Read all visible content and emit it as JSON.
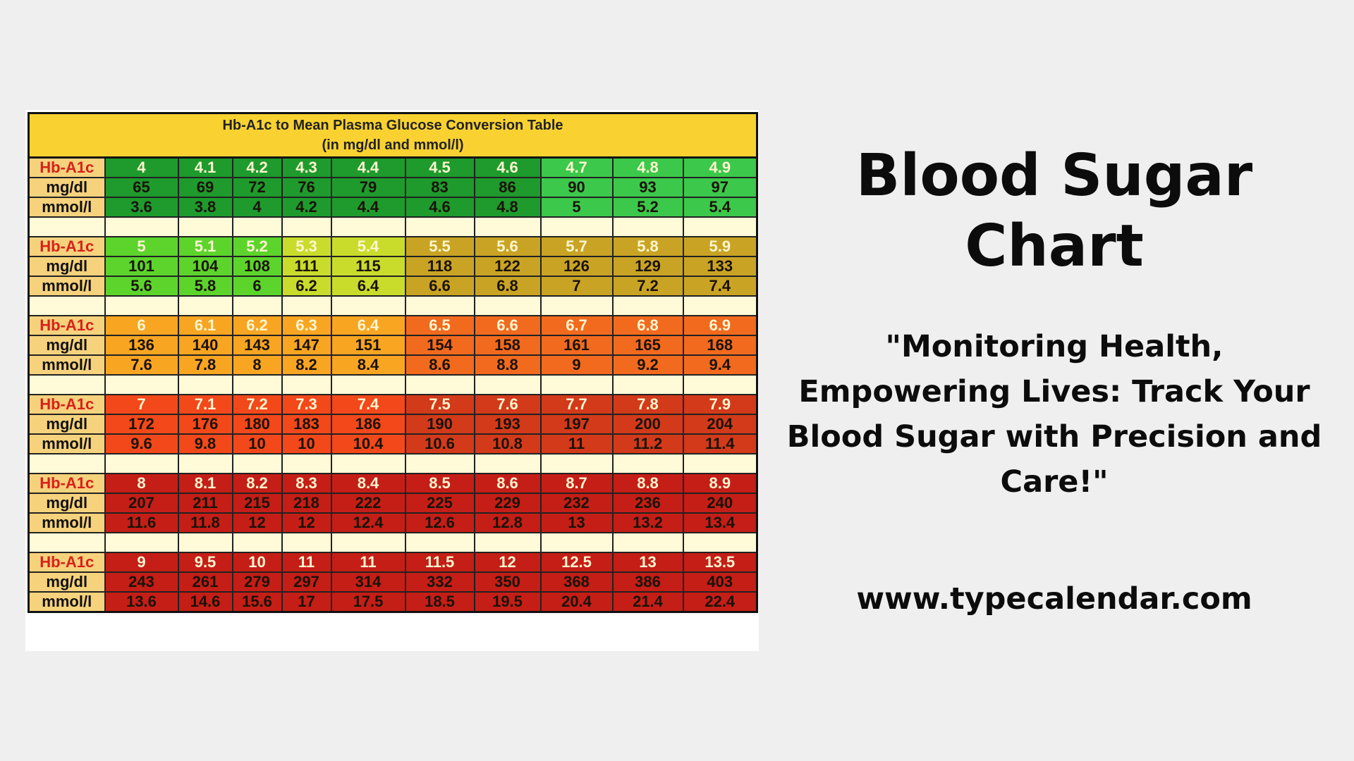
{
  "table": {
    "title_line1": "Hb-A1c to Mean Plasma Glucose Conversion Table",
    "title_line2": "(in mg/dl and mmol/l)",
    "row_labels": [
      "Hb-A1c",
      "mg/dl",
      "mmol/l"
    ],
    "groups": [
      {
        "hba1c": [
          "4",
          "4.1",
          "4.2",
          "4.3",
          "4.4",
          "4.5",
          "4.6",
          "4.7",
          "4.8",
          "4.9"
        ],
        "mgdl": [
          "65",
          "69",
          "72",
          "76",
          "79",
          "83",
          "86",
          "90",
          "93",
          "97"
        ],
        "mmol": [
          "3.6",
          "3.8",
          "4",
          "4.2",
          "4.4",
          "4.6",
          "4.8",
          "5",
          "5.2",
          "5.4"
        ],
        "colors": [
          "#1e9b2c",
          "#1e9b2c",
          "#1e9b2c",
          "#1e9b2c",
          "#1e9b2c",
          "#1e9b2c",
          "#1e9b2c",
          "#3cc84a",
          "#3cc84a",
          "#3cc84a"
        ]
      },
      {
        "hba1c": [
          "5",
          "5.1",
          "5.2",
          "5.3",
          "5.4",
          "5.5",
          "5.6",
          "5.7",
          "5.8",
          "5.9"
        ],
        "mgdl": [
          "101",
          "104",
          "108",
          "111",
          "115",
          "118",
          "122",
          "126",
          "129",
          "133"
        ],
        "mmol": [
          "5.6",
          "5.8",
          "6",
          "6.2",
          "6.4",
          "6.6",
          "6.8",
          "7",
          "7.2",
          "7.4"
        ],
        "colors": [
          "#5cd42c",
          "#5cd42c",
          "#5cd42c",
          "#c9dc2c",
          "#c9dc2c",
          "#c9a424",
          "#c9a424",
          "#c9a424",
          "#c9a424",
          "#c9a424"
        ]
      },
      {
        "hba1c": [
          "6",
          "6.1",
          "6.2",
          "6.3",
          "6.4",
          "6.5",
          "6.6",
          "6.7",
          "6.8",
          "6.9"
        ],
        "mgdl": [
          "136",
          "140",
          "143",
          "147",
          "151",
          "154",
          "158",
          "161",
          "165",
          "168"
        ],
        "mmol": [
          "7.6",
          "7.8",
          "8",
          "8.2",
          "8.4",
          "8.6",
          "8.8",
          "9",
          "9.2",
          "9.4"
        ],
        "colors": [
          "#f8a522",
          "#f8a522",
          "#f8a522",
          "#f8a522",
          "#f8a522",
          "#f26a1e",
          "#f26a1e",
          "#f26a1e",
          "#f26a1e",
          "#f26a1e"
        ]
      },
      {
        "hba1c": [
          "7",
          "7.1",
          "7.2",
          "7.3",
          "7.4",
          "7.5",
          "7.6",
          "7.7",
          "7.8",
          "7.9"
        ],
        "mgdl": [
          "172",
          "176",
          "180",
          "183",
          "186",
          "190",
          "193",
          "197",
          "200",
          "204"
        ],
        "mmol": [
          "9.6",
          "9.8",
          "10",
          "10",
          "10.4",
          "10.6",
          "10.8",
          "11",
          "11.2",
          "11.4"
        ],
        "colors": [
          "#f2481a",
          "#f2481a",
          "#f2481a",
          "#f2481a",
          "#f2481a",
          "#d23a1a",
          "#d23a1a",
          "#d23a1a",
          "#d23a1a",
          "#d23a1a"
        ]
      },
      {
        "hba1c": [
          "8",
          "8.1",
          "8.2",
          "8.3",
          "8.4",
          "8.5",
          "8.6",
          "8.7",
          "8.8",
          "8.9"
        ],
        "mgdl": [
          "207",
          "211",
          "215",
          "218",
          "222",
          "225",
          "229",
          "232",
          "236",
          "240"
        ],
        "mmol": [
          "11.6",
          "11.8",
          "12",
          "12",
          "12.4",
          "12.6",
          "12.8",
          "13",
          "13.2",
          "13.4"
        ],
        "colors": [
          "#c41e16",
          "#c41e16",
          "#c41e16",
          "#c41e16",
          "#c41e16",
          "#c41e16",
          "#c41e16",
          "#c41e16",
          "#c41e16",
          "#c41e16"
        ]
      },
      {
        "hba1c": [
          "9",
          "9.5",
          "10",
          "11",
          "11",
          "11.5",
          "12",
          "12.5",
          "13",
          "13.5"
        ],
        "mgdl": [
          "243",
          "261",
          "279",
          "297",
          "314",
          "332",
          "350",
          "368",
          "386",
          "403"
        ],
        "mmol": [
          "13.6",
          "14.6",
          "15.6",
          "17",
          "17.5",
          "18.5",
          "19.5",
          "20.4",
          "21.4",
          "22.4"
        ],
        "colors": [
          "#c41e16",
          "#c41e16",
          "#c41e16",
          "#c41e16",
          "#c41e16",
          "#c41e16",
          "#c41e16",
          "#c41e16",
          "#c41e16",
          "#c41e16"
        ]
      }
    ]
  },
  "page": {
    "title": "Blood Sugar Chart",
    "tagline": "\"Monitoring Health, Empowering Lives: Track Your Blood Sugar with Precision and Care!\"",
    "url": "www.typecalendar.com"
  }
}
